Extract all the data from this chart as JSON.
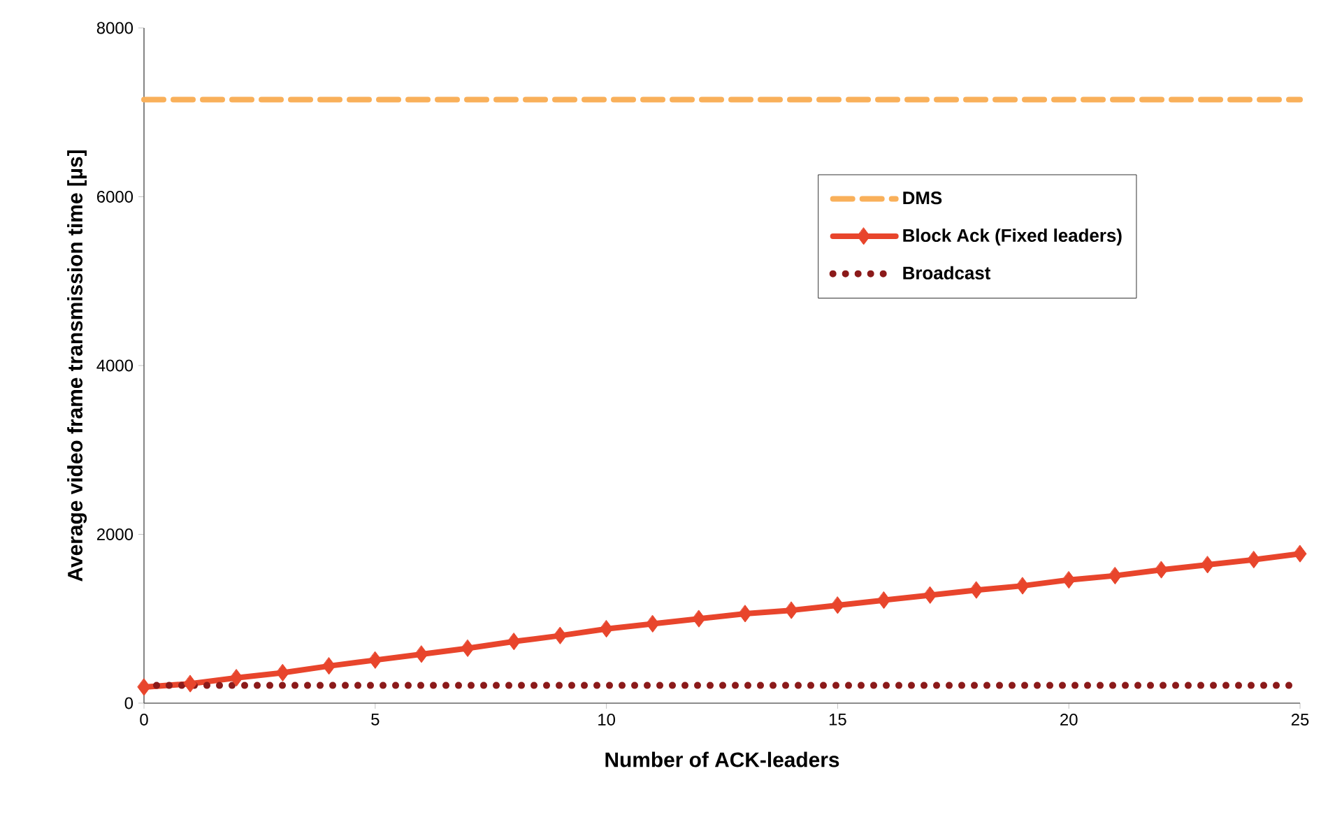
{
  "chart_data": {
    "type": "line",
    "xlabel": "Number of ACK-leaders",
    "ylabel": "Average video frame transmission  time  [µs]",
    "x": [
      0,
      1,
      2,
      3,
      4,
      5,
      6,
      7,
      8,
      9,
      10,
      11,
      12,
      13,
      14,
      15,
      16,
      17,
      18,
      19,
      20,
      21,
      22,
      23,
      24,
      25
    ],
    "xlim": [
      0,
      25
    ],
    "xticks": [
      0,
      5,
      10,
      15,
      20,
      25
    ],
    "ylim": [
      0,
      8000
    ],
    "yticks": [
      0,
      2000,
      4000,
      6000,
      8000
    ],
    "grid": false,
    "legend": "right",
    "series": [
      {
        "name": "DMS",
        "color": "#f9b05a",
        "line_style": "dashed",
        "marker": "none",
        "values": [
          7150,
          7150,
          7150,
          7150,
          7150,
          7150,
          7150,
          7150,
          7150,
          7150,
          7150,
          7150,
          7150,
          7150,
          7150,
          7150,
          7150,
          7150,
          7150,
          7150,
          7150,
          7150,
          7150,
          7150,
          7150,
          7150
        ]
      },
      {
        "name": "Block Ack (Fixed leaders)",
        "color": "#e8452c",
        "line_style": "solid",
        "marker": "diamond",
        "values": [
          190,
          230,
          300,
          360,
          440,
          510,
          580,
          650,
          730,
          800,
          880,
          940,
          1000,
          1060,
          1100,
          1160,
          1220,
          1280,
          1340,
          1390,
          1460,
          1510,
          1580,
          1640,
          1700,
          1770
        ]
      },
      {
        "name": "Broadcast",
        "color": "#8b1a1a",
        "line_style": "dotted",
        "marker": "none",
        "values": [
          210,
          210,
          210,
          210,
          210,
          210,
          210,
          210,
          210,
          210,
          210,
          210,
          210,
          210,
          210,
          210,
          210,
          210,
          210,
          210,
          210,
          210,
          210,
          210,
          210,
          210
        ]
      }
    ]
  }
}
